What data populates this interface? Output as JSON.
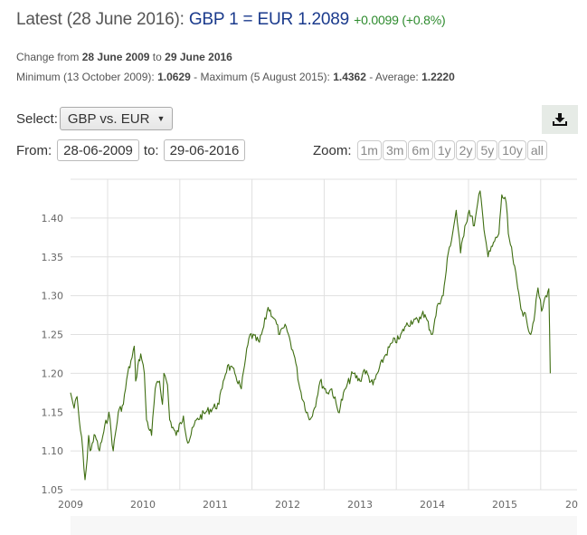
{
  "header": {
    "latest_label": "Latest (28 June 2016):",
    "rate_text": "GBP 1 = EUR 1.2089",
    "change_text": "+0.0099 (+0.8%)",
    "change_from_prefix": "Change from",
    "change_from_date": "28 June 2009",
    "change_to_word": "to",
    "change_to_date": "29 June 2016",
    "min_label": "Minimum (13 October 2009):",
    "min_value": "1.0629",
    "max_label": "- Maximum (5 August 2015):",
    "max_value": "1.4362",
    "avg_label": "- Average:",
    "avg_value": "1.2220"
  },
  "controls": {
    "select_label": "Select:",
    "select_value": "GBP vs. EUR",
    "caret": "▼",
    "from_label": "From:",
    "from_value": "28-06-2009",
    "to_label": "to:",
    "to_value": "29-06-2016",
    "zoom_label": "Zoom:",
    "zoom_buttons": [
      "1m",
      "3m",
      "6m",
      "1y",
      "2y",
      "5y",
      "10y",
      "all"
    ],
    "download_icon": "download-icon"
  },
  "colors": {
    "line": "#3f6e12",
    "grid": "#e0e0e0",
    "axis_text": "#666666"
  },
  "chart_data": {
    "type": "line",
    "title": "GBP vs. EUR",
    "xlabel": "",
    "ylabel": "",
    "x_unit": "decimal year",
    "xlim": [
      2009.49,
      2016.5
    ],
    "ylim": [
      1.05,
      1.45
    ],
    "grid": true,
    "legend": "none",
    "y_ticks": [
      "1.05",
      "1.10",
      "1.15",
      "1.20",
      "1.25",
      "1.30",
      "1.35",
      "1.40"
    ],
    "y_tick_values": [
      1.05,
      1.1,
      1.15,
      1.2,
      1.25,
      1.3,
      1.35,
      1.4
    ],
    "x_ticks": [
      "2009",
      "2010",
      "2011",
      "2012",
      "2013",
      "2014",
      "2015",
      "20"
    ],
    "series": [
      {
        "name": "GBP vs. EUR",
        "x": [
          2009.49,
          2009.54,
          2009.58,
          2009.61,
          2009.66,
          2009.69,
          2009.72,
          2009.74,
          2009.76,
          2009.79,
          2009.83,
          2009.89,
          2009.95,
          2010.02,
          2010.08,
          2010.15,
          2010.22,
          2010.28,
          2010.34,
          2010.37,
          2010.39,
          2010.42,
          2010.46,
          2010.51,
          2010.54,
          2010.61,
          2010.66,
          2010.72,
          2010.76,
          2010.78,
          2010.83,
          2010.86,
          2010.95,
          2011.05,
          2011.11,
          2011.23,
          2011.36,
          2011.54,
          2011.6,
          2011.66,
          2011.76,
          2011.85,
          2011.91,
          2011.97,
          2012.1,
          2012.16,
          2012.22,
          2012.31,
          2012.38,
          2012.47,
          2012.56,
          2012.59,
          2012.66,
          2012.79,
          2012.86,
          2012.94,
          2013.04,
          2013.1,
          2013.19,
          2013.29,
          2013.39,
          2013.49,
          2013.55,
          2013.67,
          2013.82,
          2013.94,
          2014.04,
          2014.11,
          2014.24,
          2014.3,
          2014.36,
          2014.49,
          2014.51,
          2014.57,
          2014.64,
          2014.71,
          2014.77,
          2014.82,
          2014.88,
          2014.94,
          2015.0,
          2015.07,
          2015.15,
          2015.19,
          2015.26,
          2015.35,
          2015.41,
          2015.45,
          2015.51,
          2015.54,
          2015.6,
          2015.67,
          2015.73,
          2015.79,
          2015.85,
          2015.91,
          2015.95,
          2016.0,
          2016.06,
          2016.1,
          2016.12
        ],
        "y": [
          1.175,
          1.155,
          1.17,
          1.14,
          1.1,
          1.063,
          1.09,
          1.12,
          1.1,
          1.11,
          1.12,
          1.1,
          1.125,
          1.15,
          1.1,
          1.15,
          1.16,
          1.2,
          1.22,
          1.235,
          1.19,
          1.21,
          1.225,
          1.2,
          1.14,
          1.12,
          1.18,
          1.19,
          1.16,
          1.2,
          1.185,
          1.14,
          1.12,
          1.145,
          1.11,
          1.14,
          1.15,
          1.16,
          1.19,
          1.21,
          1.2,
          1.18,
          1.22,
          1.25,
          1.24,
          1.26,
          1.285,
          1.27,
          1.25,
          1.26,
          1.23,
          1.22,
          1.18,
          1.14,
          1.155,
          1.19,
          1.175,
          1.18,
          1.15,
          1.18,
          1.2,
          1.19,
          1.205,
          1.185,
          1.22,
          1.24,
          1.245,
          1.26,
          1.27,
          1.265,
          1.28,
          1.25,
          1.26,
          1.29,
          1.3,
          1.355,
          1.38,
          1.41,
          1.355,
          1.39,
          1.41,
          1.39,
          1.435,
          1.4,
          1.35,
          1.37,
          1.38,
          1.43,
          1.42,
          1.38,
          1.35,
          1.31,
          1.28,
          1.27,
          1.25,
          1.28,
          1.31,
          1.28,
          1.3,
          1.309,
          1.2
        ]
      }
    ]
  }
}
